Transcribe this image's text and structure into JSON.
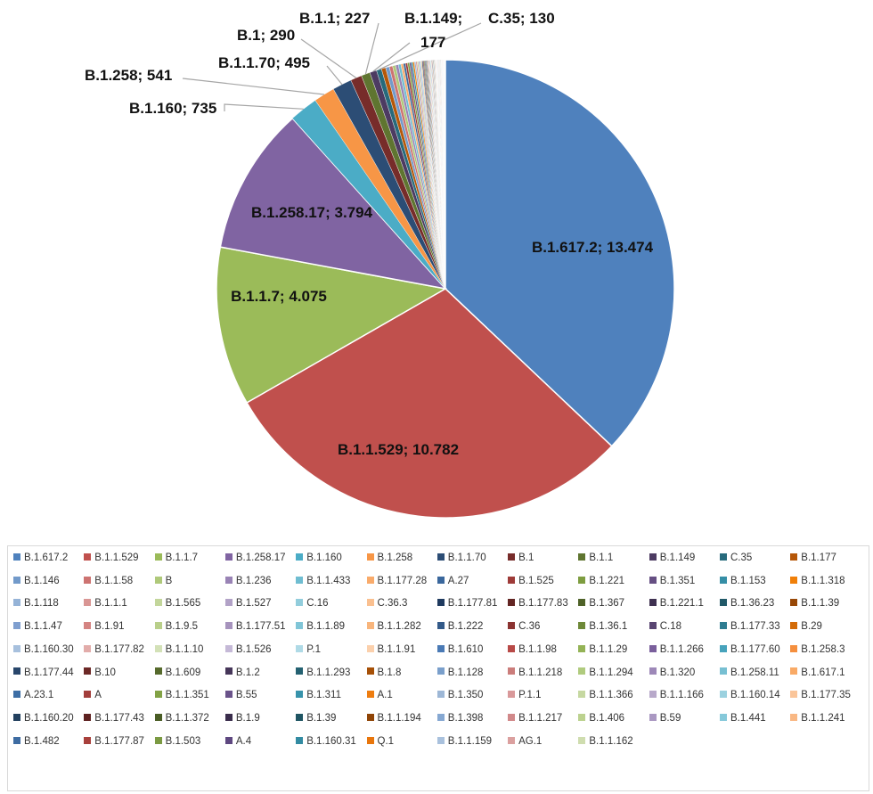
{
  "chart_data": {
    "type": "pie",
    "title": "",
    "slices": [
      {
        "name": "B.1.617.2",
        "value": 13474,
        "label": "B.1.617.2; 13.474",
        "color": "#4F81BD"
      },
      {
        "name": "B.1.1.529",
        "value": 10782,
        "label": "B.1.1.529; 10.782",
        "color": "#C0504D"
      },
      {
        "name": "B.1.1.7",
        "value": 4075,
        "label": "B.1.1.7; 4.075",
        "color": "#9BBB59"
      },
      {
        "name": "B.1.258.17",
        "value": 3794,
        "label": "B.1.258.17; 3.794",
        "color": "#8064A2"
      },
      {
        "name": "B.1.160",
        "value": 735,
        "label": "B.1.160; 735",
        "color": "#4BACC6"
      },
      {
        "name": "B.1.258",
        "value": 541,
        "label": "B.1.258; 541",
        "color": "#F79646"
      },
      {
        "name": "B.1.1.70",
        "value": 495,
        "label": "B.1.1.70; 495",
        "color": "#2C4D75"
      },
      {
        "name": "B.1",
        "value": 290,
        "label": "B.1; 290",
        "color": "#772C2A"
      },
      {
        "name": "B.1.1",
        "value": 227,
        "label": "B.1.1; 227",
        "color": "#5F7530"
      },
      {
        "name": "B.1.149",
        "value": 177,
        "label": "B.1.149;",
        "label2": "177",
        "color": "#4D3B62"
      },
      {
        "name": "C.35",
        "value": 130,
        "label": "C.35; 130",
        "color": "#276A7C"
      },
      {
        "name": "B.1.177",
        "value": 110,
        "color": "#B65708"
      },
      {
        "name": "B.1.146",
        "value": 95,
        "color": "#729ACA"
      },
      {
        "name": "B.1.1.58",
        "value": 85,
        "color": "#CD7371"
      },
      {
        "name": "B",
        "value": 78,
        "color": "#AFC97A"
      },
      {
        "name": "B.1.236",
        "value": 72,
        "color": "#9983B5"
      },
      {
        "name": "B.1.1.433",
        "value": 66,
        "color": "#6FBDD1"
      },
      {
        "name": "B.1.177.28",
        "value": 61,
        "color": "#F9AB6B"
      },
      {
        "name": "A.27",
        "value": 56,
        "color": "#3A679C"
      },
      {
        "name": "B.1.525",
        "value": 52,
        "color": "#9E3B38"
      },
      {
        "name": "B.1.221",
        "value": 48,
        "color": "#7E9D40"
      },
      {
        "name": "B.1.351",
        "value": 45,
        "color": "#664F83"
      },
      {
        "name": "B.1.153",
        "value": 42,
        "color": "#358EA6"
      },
      {
        "name": "B.1.1.318",
        "value": 40,
        "color": "#F07F09"
      },
      {
        "name": "B.1.118",
        "value": 37,
        "color": "#95B3D7"
      },
      {
        "name": "B.1.1.1",
        "value": 35,
        "color": "#D99694"
      },
      {
        "name": "B.1.565",
        "value": 33,
        "color": "#C3D69B"
      },
      {
        "name": "B.1.527",
        "value": 31,
        "color": "#B2A2C7"
      },
      {
        "name": "C.16",
        "value": 29,
        "color": "#92CDDC"
      },
      {
        "name": "C.36.3",
        "value": 28,
        "color": "#FAC090"
      },
      {
        "name": "B.1.177.81",
        "value": 26,
        "color": "#1F3A5F"
      },
      {
        "name": "B.1.177.83",
        "value": 25,
        "color": "#632523"
      },
      {
        "name": "B.1.367",
        "value": 24,
        "color": "#4F6228"
      },
      {
        "name": "B.1.221.1",
        "value": 23,
        "color": "#3F3151"
      },
      {
        "name": "B.1.36.23",
        "value": 22,
        "color": "#215968"
      },
      {
        "name": "B.1.1.39",
        "value": 21,
        "color": "#984807"
      },
      {
        "name": "B.1.1.47",
        "value": 20,
        "color": "#7F9FCF"
      },
      {
        "name": "B.1.91",
        "value": 19,
        "color": "#D48482"
      },
      {
        "name": "B.1.9.5",
        "value": 18,
        "color": "#B9CF8A"
      },
      {
        "name": "B.1.177.51",
        "value": 17,
        "color": "#A693BD"
      },
      {
        "name": "B.1.1.89",
        "value": 17,
        "color": "#80C5D7"
      },
      {
        "name": "B.1.1.282",
        "value": 16,
        "color": "#F8B57C"
      },
      {
        "name": "B.1.222",
        "value": 15,
        "color": "#335A89"
      },
      {
        "name": "C.36",
        "value": 15,
        "color": "#8B3331"
      },
      {
        "name": "B.1.36.1",
        "value": 14,
        "color": "#6E8938"
      },
      {
        "name": "C.18",
        "value": 14,
        "color": "#594572"
      },
      {
        "name": "B.1.177.33",
        "value": 13,
        "color": "#2E7C91"
      },
      {
        "name": "B.29",
        "value": 13,
        "color": "#D36B08"
      },
      {
        "name": "B.1.160.30",
        "value": 12,
        "color": "#A7C0DD"
      },
      {
        "name": "B.1.177.82",
        "value": 12,
        "color": "#E2ACAA"
      },
      {
        "name": "B.1.1.10",
        "value": 11,
        "color": "#D3E1B7"
      },
      {
        "name": "B.1.526",
        "value": 11,
        "color": "#C5B9D7"
      },
      {
        "name": "P.1",
        "value": 10,
        "color": "#AFDAE6"
      },
      {
        "name": "B.1.1.91",
        "value": 10,
        "color": "#FBD0AC"
      },
      {
        "name": "B.1.610",
        "value": 9,
        "color": "#4A7AB5"
      },
      {
        "name": "B.1.1.98",
        "value": 9,
        "color": "#B84A47"
      },
      {
        "name": "B.1.1.29",
        "value": 9,
        "color": "#94B356"
      },
      {
        "name": "B.1.1.266",
        "value": 8,
        "color": "#7A5F9C"
      },
      {
        "name": "B.1.177.60",
        "value": 8,
        "color": "#47A3BC"
      },
      {
        "name": "B.1.258.3",
        "value": 8,
        "color": "#F58F3E"
      },
      {
        "name": "B.1.177.44",
        "value": 7,
        "color": "#28466B"
      },
      {
        "name": "B.10",
        "value": 7,
        "color": "#6C2826"
      },
      {
        "name": "B.1.609",
        "value": 7,
        "color": "#566A2C"
      },
      {
        "name": "B.1.2",
        "value": 7,
        "color": "#463659"
      },
      {
        "name": "B.1.1.293",
        "value": 6,
        "color": "#246171"
      },
      {
        "name": "B.1.8",
        "value": 6,
        "color": "#A65007"
      },
      {
        "name": "B.1.128",
        "value": 6,
        "color": "#7A9FCB"
      },
      {
        "name": "B.1.1.218",
        "value": 6,
        "color": "#CB7D7B"
      },
      {
        "name": "B.1.1.294",
        "value": 5,
        "color": "#B0CB7E"
      },
      {
        "name": "B.1.320",
        "value": 5,
        "color": "#9D88B8"
      },
      {
        "name": "B.1.258.11",
        "value": 5,
        "color": "#77BFD2"
      },
      {
        "name": "B.1.617.1",
        "value": 5,
        "color": "#F9AA66"
      },
      {
        "name": "A.23.1",
        "value": 5,
        "color": "#3D6EA5"
      },
      {
        "name": "A",
        "value": 4,
        "color": "#A23E3B"
      },
      {
        "name": "B.1.1.351",
        "value": 4,
        "color": "#82A245"
      },
      {
        "name": "B.55",
        "value": 4,
        "color": "#6A538A"
      },
      {
        "name": "B.1.311",
        "value": 4,
        "color": "#3893AB"
      },
      {
        "name": "A.1",
        "value": 4,
        "color": "#EE7D10"
      },
      {
        "name": "B.1.350",
        "value": 3,
        "color": "#9DB7D6"
      },
      {
        "name": "P.1.1",
        "value": 3,
        "color": "#D9999A"
      },
      {
        "name": "B.1.1.366",
        "value": 3,
        "color": "#C6D8A1"
      },
      {
        "name": "B.1.1.166",
        "value": 3,
        "color": "#B8A9CA"
      },
      {
        "name": "B.1.160.14",
        "value": 3,
        "color": "#9BD1DF"
      },
      {
        "name": "B.1.177.35",
        "value": 3,
        "color": "#FAC59A"
      },
      {
        "name": "B.1.160.20",
        "value": 2,
        "color": "#22405F"
      },
      {
        "name": "B.1.177.43",
        "value": 2,
        "color": "#5E2120"
      },
      {
        "name": "B.1.1.372",
        "value": 2,
        "color": "#4A5D25"
      },
      {
        "name": "B.1.9",
        "value": 2,
        "color": "#3A2D4C"
      },
      {
        "name": "B.1.39",
        "value": 2,
        "color": "#1F5563"
      },
      {
        "name": "B.1.1.194",
        "value": 2,
        "color": "#8F4406"
      },
      {
        "name": "B.1.398",
        "value": 2,
        "color": "#86A8D2"
      },
      {
        "name": "B.1.1.217",
        "value": 2,
        "color": "#D1898A"
      },
      {
        "name": "B.1.406",
        "value": 2,
        "color": "#BCD28F"
      },
      {
        "name": "B.59",
        "value": 2,
        "color": "#AA98C2"
      },
      {
        "name": "B.1.441",
        "value": 2,
        "color": "#86C9DA"
      },
      {
        "name": "B.1.1.241",
        "value": 2,
        "color": "#F9B884"
      },
      {
        "name": "B.1.482",
        "value": 1,
        "color": "#3E6CA2"
      },
      {
        "name": "B.1.177.87",
        "value": 1,
        "color": "#A8403C"
      },
      {
        "name": "B.1.503",
        "value": 1,
        "color": "#7B9A42"
      },
      {
        "name": "A.4",
        "value": 1,
        "color": "#5E4880"
      },
      {
        "name": "B.1.160.31",
        "value": 1,
        "color": "#328BA2"
      },
      {
        "name": "Q.1",
        "value": 1,
        "color": "#E8760C"
      },
      {
        "name": "B.1.1.159",
        "value": 1,
        "color": "#A9C1DD"
      },
      {
        "name": "AG.1",
        "value": 1,
        "color": "#DBA09F"
      },
      {
        "name": "B.1.1.162",
        "value": 1,
        "color": "#CFDDAF"
      }
    ],
    "legend": {
      "placement": "bottom",
      "columns": 12
    }
  }
}
